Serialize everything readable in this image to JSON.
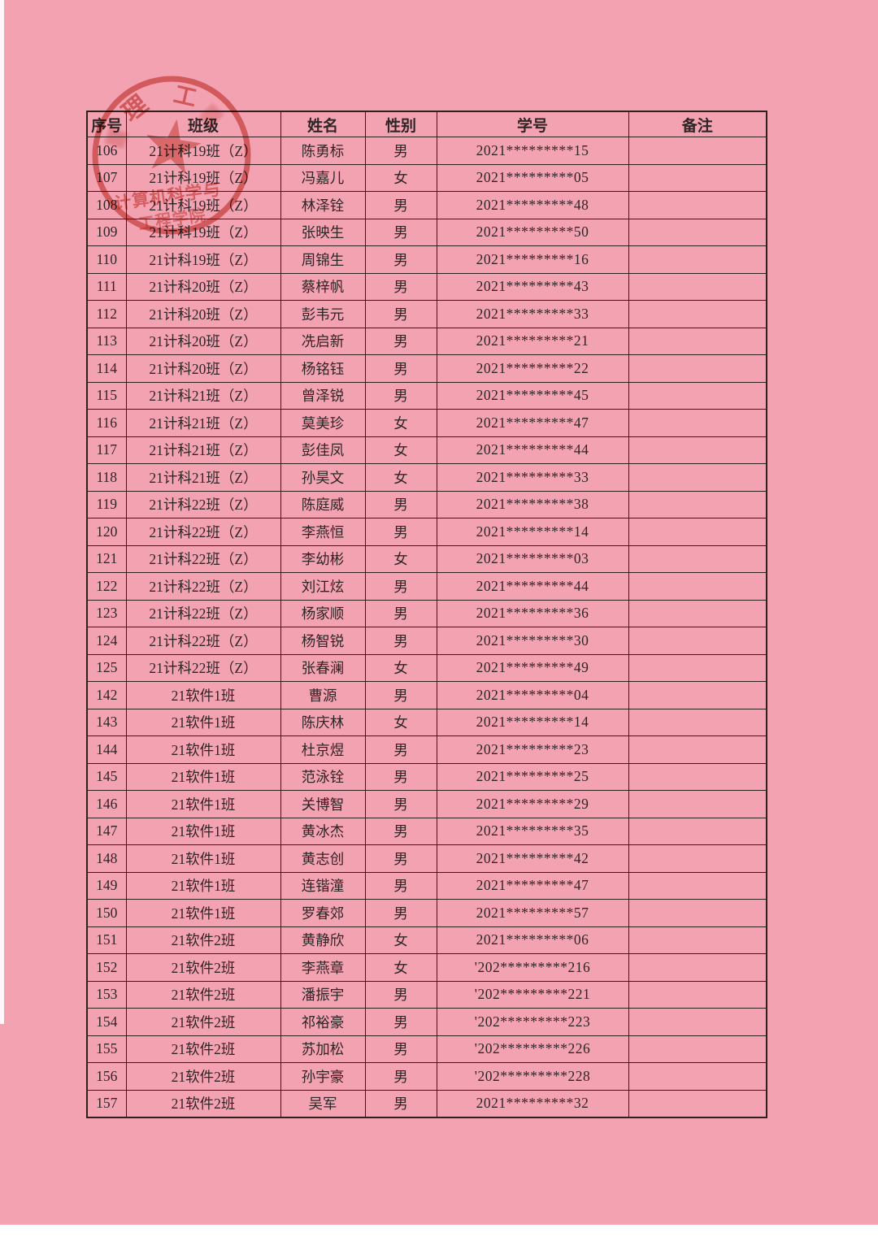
{
  "colors": {
    "page_pink": "#f3a2b2",
    "table_line": "#31201f",
    "text": "#2f2526",
    "stamp_red": "#c5392b"
  },
  "stamp": {
    "arc_chars": [
      "理",
      "工"
    ],
    "inner_line1": "计算机科学与",
    "inner_line2": "工程学院"
  },
  "table": {
    "headers": [
      "序号",
      "班级",
      "姓名",
      "性别",
      "学号",
      "备注"
    ],
    "rows": [
      [
        "106",
        "21计科19班（Z）",
        "陈勇标",
        "男",
        "2021*********15",
        ""
      ],
      [
        "107",
        "21计科19班（Z）",
        "冯嘉儿",
        "女",
        "2021*********05",
        ""
      ],
      [
        "108",
        "21计科19班（Z）",
        "林泽铨",
        "男",
        "2021*********48",
        ""
      ],
      [
        "109",
        "21计科19班（Z）",
        "张映生",
        "男",
        "2021*********50",
        ""
      ],
      [
        "110",
        "21计科19班（Z）",
        "周锦生",
        "男",
        "2021*********16",
        ""
      ],
      [
        "111",
        "21计科20班（Z）",
        "蔡梓帆",
        "男",
        "2021*********43",
        ""
      ],
      [
        "112",
        "21计科20班（Z）",
        "彭韦元",
        "男",
        "2021*********33",
        ""
      ],
      [
        "113",
        "21计科20班（Z）",
        "冼启新",
        "男",
        "2021*********21",
        ""
      ],
      [
        "114",
        "21计科20班（Z）",
        "杨铭钰",
        "男",
        "2021*********22",
        ""
      ],
      [
        "115",
        "21计科21班（Z）",
        "曾泽锐",
        "男",
        "2021*********45",
        ""
      ],
      [
        "116",
        "21计科21班（Z）",
        "莫美珍",
        "女",
        "2021*********47",
        ""
      ],
      [
        "117",
        "21计科21班（Z）",
        "彭佳凤",
        "女",
        "2021*********44",
        ""
      ],
      [
        "118",
        "21计科21班（Z）",
        "孙昊文",
        "女",
        "2021*********33",
        ""
      ],
      [
        "119",
        "21计科22班（Z）",
        "陈庭威",
        "男",
        "2021*********38",
        ""
      ],
      [
        "120",
        "21计科22班（Z）",
        "李燕恒",
        "男",
        "2021*********14",
        ""
      ],
      [
        "121",
        "21计科22班（Z）",
        "李幼彬",
        "女",
        "2021*********03",
        ""
      ],
      [
        "122",
        "21计科22班（Z）",
        "刘江炫",
        "男",
        "2021*********44",
        ""
      ],
      [
        "123",
        "21计科22班（Z）",
        "杨家顺",
        "男",
        "2021*********36",
        ""
      ],
      [
        "124",
        "21计科22班（Z）",
        "杨智锐",
        "男",
        "2021*********30",
        ""
      ],
      [
        "125",
        "21计科22班（Z）",
        "张春澜",
        "女",
        "2021*********49",
        ""
      ],
      [
        "142",
        "21软件1班",
        "曹源",
        "男",
        "2021*********04",
        ""
      ],
      [
        "143",
        "21软件1班",
        "陈庆林",
        "女",
        "2021*********14",
        ""
      ],
      [
        "144",
        "21软件1班",
        "杜京煜",
        "男",
        "2021*********23",
        ""
      ],
      [
        "145",
        "21软件1班",
        "范泳铨",
        "男",
        "2021*********25",
        ""
      ],
      [
        "146",
        "21软件1班",
        "关博智",
        "男",
        "2021*********29",
        ""
      ],
      [
        "147",
        "21软件1班",
        "黄冰杰",
        "男",
        "2021*********35",
        ""
      ],
      [
        "148",
        "21软件1班",
        "黄志创",
        "男",
        "2021*********42",
        ""
      ],
      [
        "149",
        "21软件1班",
        "连锴潼",
        "男",
        "2021*********47",
        ""
      ],
      [
        "150",
        "21软件1班",
        "罗春郊",
        "男",
        "2021*********57",
        ""
      ],
      [
        "151",
        "21软件2班",
        "黄静欣",
        "女",
        "2021*********06",
        ""
      ],
      [
        "152",
        "21软件2班",
        "李燕章",
        "女",
        "'202*********216",
        ""
      ],
      [
        "153",
        "21软件2班",
        "潘振宇",
        "男",
        "'202*********221",
        ""
      ],
      [
        "154",
        "21软件2班",
        "祁裕豪",
        "男",
        "'202*********223",
        ""
      ],
      [
        "155",
        "21软件2班",
        "苏加松",
        "男",
        "'202*********226",
        ""
      ],
      [
        "156",
        "21软件2班",
        "孙宇豪",
        "男",
        "'202*********228",
        ""
      ],
      [
        "157",
        "21软件2班",
        "吴军",
        "男",
        "2021*********32",
        ""
      ]
    ]
  }
}
